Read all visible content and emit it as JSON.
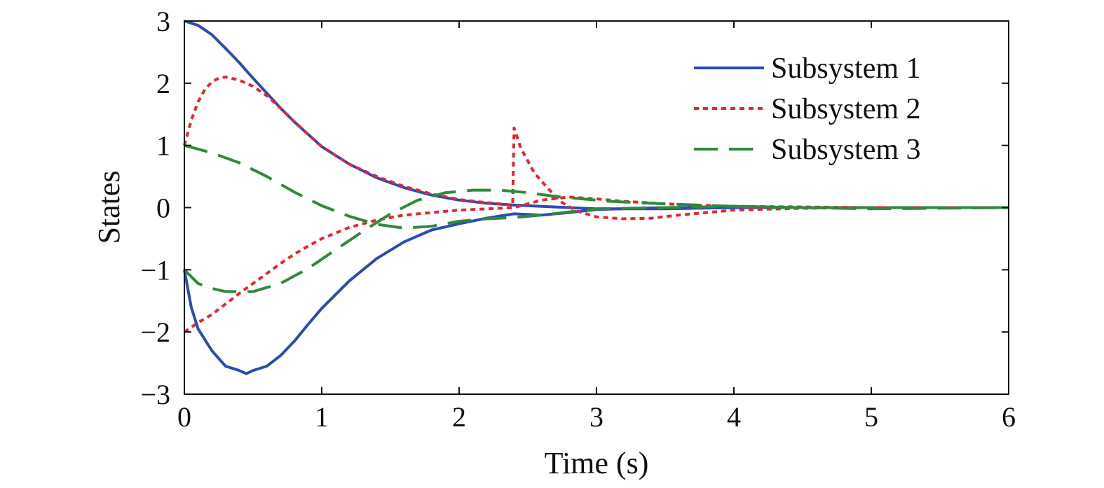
{
  "chart_data": {
    "type": "line",
    "title": "",
    "xlabel": "Time (s)",
    "ylabel": "States",
    "xlim": [
      0,
      6
    ],
    "ylim": [
      -3,
      3
    ],
    "xticks": [
      "0",
      "1",
      "2",
      "3",
      "4",
      "5",
      "6"
    ],
    "yticks": [
      "3",
      "2",
      "1",
      "0",
      "−1",
      "−2",
      "−3"
    ],
    "grid": false,
    "legend_position": "top-right",
    "series": [
      {
        "name": "Subsystem 1",
        "color": "#2b4bb5",
        "style": "solid",
        "lines": [
          [
            [
              0,
              3
            ],
            [
              0.1,
              2.93
            ],
            [
              0.2,
              2.78
            ],
            [
              0.3,
              2.56
            ],
            [
              0.4,
              2.33
            ],
            [
              0.5,
              2.08
            ],
            [
              0.6,
              1.84
            ],
            [
              0.7,
              1.6
            ],
            [
              0.8,
              1.38
            ],
            [
              0.9,
              1.18
            ],
            [
              1.0,
              0.98
            ],
            [
              1.2,
              0.7
            ],
            [
              1.4,
              0.48
            ],
            [
              1.6,
              0.32
            ],
            [
              1.8,
              0.2
            ],
            [
              2.0,
              0.12
            ],
            [
              2.2,
              0.07
            ],
            [
              2.4,
              0.04
            ],
            [
              2.6,
              0.02
            ],
            [
              2.8,
              0.0
            ],
            [
              3.0,
              -0.02
            ],
            [
              3.5,
              -0.02
            ],
            [
              4.0,
              0.0
            ],
            [
              5.0,
              0.0
            ],
            [
              6.0,
              0.0
            ]
          ],
          [
            [
              0,
              -1
            ],
            [
              0.05,
              -1.6
            ],
            [
              0.1,
              -1.95
            ],
            [
              0.2,
              -2.3
            ],
            [
              0.3,
              -2.55
            ],
            [
              0.4,
              -2.62
            ],
            [
              0.45,
              -2.67
            ],
            [
              0.5,
              -2.62
            ],
            [
              0.6,
              -2.55
            ],
            [
              0.7,
              -2.38
            ],
            [
              0.8,
              -2.15
            ],
            [
              0.9,
              -1.88
            ],
            [
              1.0,
              -1.62
            ],
            [
              1.2,
              -1.18
            ],
            [
              1.4,
              -0.82
            ],
            [
              1.6,
              -0.55
            ],
            [
              1.8,
              -0.36
            ],
            [
              2.0,
              -0.26
            ],
            [
              2.2,
              -0.17
            ],
            [
              2.4,
              -0.1
            ],
            [
              2.6,
              -0.12
            ],
            [
              2.8,
              -0.08
            ],
            [
              3.0,
              -0.03
            ],
            [
              3.5,
              0.0
            ],
            [
              4.0,
              0.0
            ],
            [
              6.0,
              0.0
            ]
          ]
        ]
      },
      {
        "name": "Subsystem 2",
        "color": "#e8242c",
        "style": "dotted",
        "lines": [
          [
            [
              0,
              1
            ],
            [
              0.05,
              1.4
            ],
            [
              0.1,
              1.7
            ],
            [
              0.15,
              1.9
            ],
            [
              0.2,
              2.02
            ],
            [
              0.25,
              2.08
            ],
            [
              0.3,
              2.1
            ],
            [
              0.4,
              2.05
            ],
            [
              0.5,
              1.95
            ],
            [
              0.6,
              1.8
            ],
            [
              0.7,
              1.6
            ],
            [
              0.8,
              1.38
            ],
            [
              0.9,
              1.18
            ],
            [
              1.0,
              0.98
            ],
            [
              1.2,
              0.7
            ],
            [
              1.4,
              0.5
            ],
            [
              1.6,
              0.34
            ],
            [
              1.8,
              0.22
            ],
            [
              2.0,
              0.13
            ],
            [
              2.2,
              0.08
            ],
            [
              2.39,
              0.04
            ],
            [
              2.4,
              1.28
            ],
            [
              2.45,
              0.95
            ],
            [
              2.55,
              0.55
            ],
            [
              2.65,
              0.3
            ],
            [
              2.75,
              0.08
            ],
            [
              2.85,
              -0.05
            ],
            [
              3.0,
              -0.15
            ],
            [
              3.2,
              -0.18
            ],
            [
              3.4,
              -0.17
            ],
            [
              3.6,
              -0.12
            ],
            [
              3.8,
              -0.08
            ],
            [
              4.0,
              -0.04
            ],
            [
              4.5,
              -0.01
            ],
            [
              5.0,
              0.0
            ],
            [
              6.0,
              0.0
            ]
          ],
          [
            [
              0,
              -2
            ],
            [
              0.1,
              -1.85
            ],
            [
              0.2,
              -1.72
            ],
            [
              0.3,
              -1.55
            ],
            [
              0.4,
              -1.38
            ],
            [
              0.5,
              -1.22
            ],
            [
              0.6,
              -1.06
            ],
            [
              0.7,
              -0.9
            ],
            [
              0.8,
              -0.75
            ],
            [
              0.9,
              -0.62
            ],
            [
              1.0,
              -0.5
            ],
            [
              1.2,
              -0.32
            ],
            [
              1.4,
              -0.2
            ],
            [
              1.6,
              -0.12
            ],
            [
              1.8,
              -0.08
            ],
            [
              2.0,
              -0.04
            ],
            [
              2.2,
              -0.02
            ],
            [
              2.4,
              0.0
            ],
            [
              2.6,
              0.12
            ],
            [
              2.8,
              0.17
            ],
            [
              3.0,
              0.14
            ],
            [
              3.2,
              0.1
            ],
            [
              3.6,
              0.05
            ],
            [
              4.0,
              0.02
            ],
            [
              5.0,
              0.0
            ],
            [
              6.0,
              0.0
            ]
          ]
        ]
      },
      {
        "name": "Subsystem 3",
        "color": "#2e8a3c",
        "style": "dashed",
        "lines": [
          [
            [
              0,
              1
            ],
            [
              0.2,
              0.88
            ],
            [
              0.4,
              0.72
            ],
            [
              0.6,
              0.5
            ],
            [
              0.8,
              0.25
            ],
            [
              1.0,
              0.03
            ],
            [
              1.2,
              -0.14
            ],
            [
              1.4,
              -0.27
            ],
            [
              1.6,
              -0.33
            ],
            [
              1.8,
              -0.3
            ],
            [
              2.0,
              -0.22
            ],
            [
              2.2,
              -0.18
            ],
            [
              2.4,
              -0.16
            ],
            [
              2.6,
              -0.12
            ],
            [
              2.8,
              -0.07
            ],
            [
              3.0,
              -0.02
            ],
            [
              3.5,
              0.0
            ],
            [
              4.0,
              0.02
            ],
            [
              4.5,
              0.0
            ],
            [
              5.0,
              -0.02
            ],
            [
              6.0,
              0.0
            ]
          ],
          [
            [
              0,
              -1
            ],
            [
              0.1,
              -1.22
            ],
            [
              0.2,
              -1.3
            ],
            [
              0.3,
              -1.35
            ],
            [
              0.5,
              -1.35
            ],
            [
              0.7,
              -1.22
            ],
            [
              0.9,
              -0.98
            ],
            [
              1.1,
              -0.68
            ],
            [
              1.3,
              -0.38
            ],
            [
              1.5,
              -0.1
            ],
            [
              1.7,
              0.12
            ],
            [
              1.9,
              0.24
            ],
            [
              2.1,
              0.28
            ],
            [
              2.3,
              0.28
            ],
            [
              2.5,
              0.24
            ],
            [
              2.7,
              0.18
            ],
            [
              2.9,
              0.14
            ],
            [
              3.1,
              0.1
            ],
            [
              3.5,
              0.06
            ],
            [
              4.0,
              0.02
            ],
            [
              4.5,
              0.0
            ],
            [
              6.0,
              0.0
            ]
          ]
        ]
      }
    ]
  }
}
